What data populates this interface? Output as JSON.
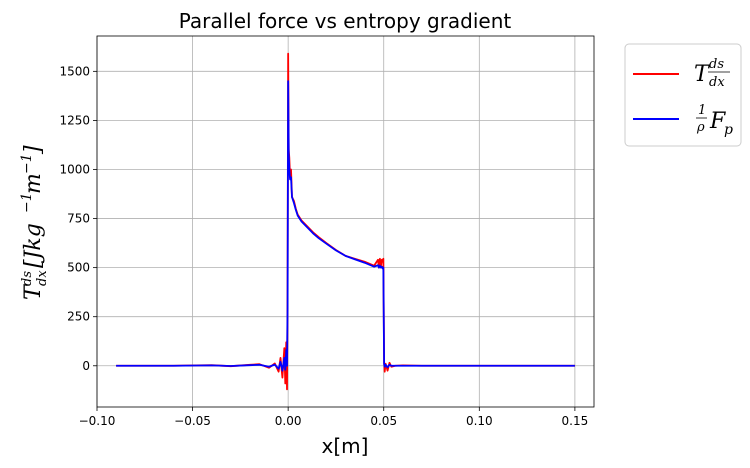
{
  "chart_data": {
    "type": "line",
    "title": "Parallel force vs entropy gradient",
    "xlabel": "x[m]",
    "ylabel": {
      "base": "T",
      "frac_num": "ds",
      "frac_den": "dx",
      "unit_open": "[Jkg",
      "unit_exp1": "−1",
      "unit_mid": "m",
      "unit_exp2": "−1",
      "unit_close": "]"
    },
    "xlim": [
      -0.1,
      0.16
    ],
    "ylim": [
      -210,
      1680
    ],
    "xticks": [
      -0.1,
      -0.05,
      0.0,
      0.05,
      0.1,
      0.15
    ],
    "xtick_labels": [
      "−0.10",
      "−0.05",
      "0.00",
      "0.05",
      "0.10",
      "0.15"
    ],
    "yticks": [
      0,
      250,
      500,
      750,
      1000,
      1250,
      1500
    ],
    "ytick_labels": [
      "0",
      "250",
      "500",
      "750",
      "1000",
      "1250",
      "1500"
    ],
    "grid": true,
    "legend_position": "outside-top-right",
    "series": [
      {
        "legend": {
          "base": "T",
          "frac_num": "ds",
          "frac_den": "dx"
        },
        "color": "#ff0000",
        "x": [
          -0.09,
          -0.06,
          -0.04,
          -0.03,
          -0.02,
          -0.015,
          -0.01,
          -0.007,
          -0.005,
          -0.004,
          -0.003,
          -0.002,
          -0.0015,
          -0.001,
          -0.0006,
          -0.0003,
          0.0,
          0.0003,
          0.0006,
          0.001,
          0.0015,
          0.002,
          0.003,
          0.004,
          0.005,
          0.007,
          0.01,
          0.013,
          0.016,
          0.02,
          0.025,
          0.03,
          0.035,
          0.04,
          0.045,
          0.047,
          0.0475,
          0.048,
          0.0485,
          0.049,
          0.0495,
          0.0498,
          0.0502,
          0.0505,
          0.051,
          0.052,
          0.053,
          0.054,
          0.056,
          0.06,
          0.07,
          0.08,
          0.1,
          0.12,
          0.15
        ],
        "y": [
          0,
          0,
          3,
          -2,
          5,
          8,
          -10,
          12,
          -30,
          40,
          -60,
          90,
          -90,
          120,
          -120,
          400,
          1590,
          1100,
          1060,
          960,
          1000,
          860,
          840,
          800,
          770,
          740,
          710,
          680,
          655,
          625,
          590,
          560,
          545,
          530,
          510,
          540,
          500,
          545,
          505,
          540,
          530,
          545,
          20,
          -30,
          10,
          -25,
          15,
          -5,
          0,
          2,
          0,
          0,
          0,
          0,
          0
        ]
      },
      {
        "legend": {
          "base": "F",
          "frac_num": "1",
          "frac_den": "ρ",
          "sub": "p"
        },
        "color": "#0000ff",
        "x": [
          -0.09,
          -0.06,
          -0.04,
          -0.03,
          -0.02,
          -0.015,
          -0.01,
          -0.007,
          -0.005,
          -0.004,
          -0.003,
          -0.002,
          -0.0015,
          -0.001,
          -0.0006,
          -0.0003,
          0.0,
          0.0003,
          0.0006,
          0.001,
          0.0015,
          0.002,
          0.003,
          0.004,
          0.005,
          0.007,
          0.01,
          0.013,
          0.016,
          0.02,
          0.025,
          0.03,
          0.035,
          0.04,
          0.045,
          0.047,
          0.0475,
          0.048,
          0.0485,
          0.049,
          0.0495,
          0.0498,
          0.0502,
          0.0505,
          0.051,
          0.052,
          0.053,
          0.054,
          0.056,
          0.06,
          0.07,
          0.08,
          0.1,
          0.12,
          0.15
        ],
        "y": [
          0,
          0,
          2,
          -1,
          3,
          5,
          -5,
          6,
          -15,
          20,
          -25,
          40,
          -20,
          80,
          0,
          300,
          1450,
          1080,
          1000,
          950,
          960,
          860,
          830,
          795,
          765,
          735,
          705,
          675,
          650,
          622,
          588,
          560,
          542,
          525,
          505,
          512,
          500,
          510,
          500,
          505,
          495,
          500,
          10,
          -5,
          5,
          -8,
          5,
          0,
          0,
          0,
          0,
          0,
          0,
          0,
          0
        ]
      }
    ]
  }
}
